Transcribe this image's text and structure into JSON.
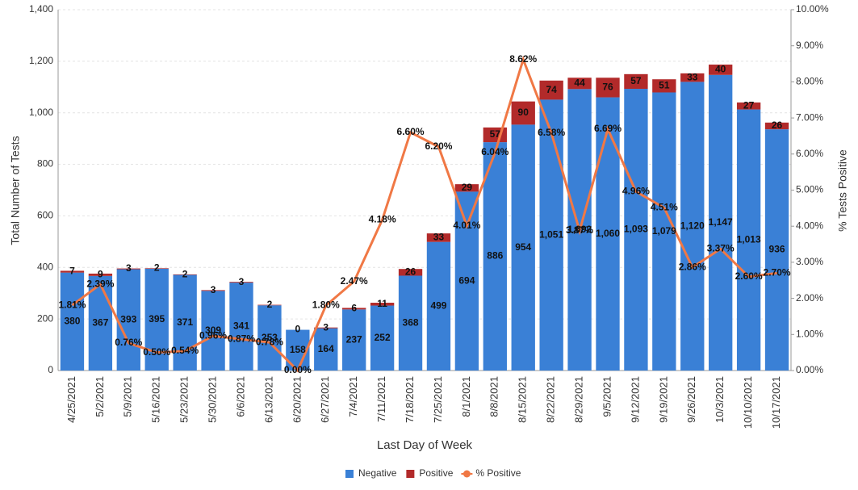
{
  "chart_data": {
    "type": "bar-line",
    "x_label": "Last Day of Week",
    "y_label": "Total Number of Tests",
    "y2_label": "% Tests Positive",
    "categories": [
      "4/25/2021",
      "5/2/2021",
      "5/9/2021",
      "5/16/2021",
      "5/23/2021",
      "5/30/2021",
      "6/6/2021",
      "6/13/2021",
      "6/20/2021",
      "6/27/2021",
      "7/4/2021",
      "7/11/2021",
      "7/18/2021",
      "7/25/2021",
      "8/1/2021",
      "8/8/2021",
      "8/15/2021",
      "8/22/2021",
      "8/29/2021",
      "9/5/2021",
      "9/12/2021",
      "9/19/2021",
      "9/26/2021",
      "10/3/2021",
      "10/10/2021",
      "10/17/2021"
    ],
    "series": [
      {
        "name": "Negative",
        "color": "#3a80d6",
        "kind": "bar",
        "values": [
          380,
          367,
          393,
          395,
          371,
          309,
          341,
          253,
          158,
          164,
          237,
          252,
          368,
          499,
          694,
          886,
          954,
          1051,
          1092,
          1060,
          1093,
          1079,
          1120,
          1147,
          1013,
          936
        ],
        "value_labels": [
          "380",
          "367",
          "393",
          "395",
          "371",
          "309",
          "341",
          "253",
          "158",
          "164",
          "237",
          "252",
          "368",
          "499",
          "694",
          "886",
          "954",
          "1,051",
          "1,092",
          "1,060",
          "1,093",
          "1,079",
          "1,120",
          "1,147",
          "1,013",
          "936"
        ]
      },
      {
        "name": "Positive",
        "color": "#b22a2a",
        "kind": "bar",
        "values": [
          7,
          9,
          3,
          2,
          2,
          3,
          3,
          2,
          0,
          3,
          6,
          11,
          26,
          33,
          29,
          57,
          90,
          74,
          44,
          76,
          57,
          51,
          33,
          40,
          27,
          26
        ]
      },
      {
        "name": "% Positive",
        "color": "#f07845",
        "kind": "line",
        "axis": "y2",
        "values": [
          1.81,
          2.39,
          0.76,
          0.5,
          0.54,
          0.96,
          0.87,
          0.78,
          0.0,
          1.8,
          2.47,
          4.18,
          6.6,
          6.2,
          4.01,
          6.04,
          8.62,
          6.58,
          3.87,
          6.69,
          4.96,
          4.51,
          2.86,
          3.37,
          2.6,
          2.7
        ],
        "value_labels": [
          "1.81%",
          "2.39%",
          "0.76%",
          "0.50%",
          "0.54%",
          "0.96%",
          "0.87%",
          "0.78%",
          "0.00%",
          "1.80%",
          "2.47%",
          "4.18%",
          "6.60%",
          "6.20%",
          "4.01%",
          "6.04%",
          "8.62%",
          "6.58%",
          "3.87%",
          "6.69%",
          "4.96%",
          "4.51%",
          "2.86%",
          "3.37%",
          "2.60%",
          "2.70%"
        ]
      }
    ],
    "ylim": [
      0,
      1400
    ],
    "yticks": [
      0,
      200,
      400,
      600,
      800,
      {
        "value": 1000,
        "label": "1,000"
      },
      {
        "value": 1200,
        "label": "1,200"
      },
      {
        "value": 1400,
        "label": "1,400"
      }
    ],
    "y2lim": [
      0,
      10
    ],
    "y2ticks": [
      {
        "value": 0,
        "label": "0.00%"
      },
      {
        "value": 1,
        "label": "1.00%"
      },
      {
        "value": 2,
        "label": "2.00%"
      },
      {
        "value": 3,
        "label": "3.00%"
      },
      {
        "value": 4,
        "label": "4.00%"
      },
      {
        "value": 5,
        "label": "5.00%"
      },
      {
        "value": 6,
        "label": "6.00%"
      },
      {
        "value": 7,
        "label": "7.00%"
      },
      {
        "value": 8,
        "label": "8.00%"
      },
      {
        "value": 9,
        "label": "9.00%"
      },
      {
        "value": 10,
        "label": "10.00%"
      }
    ],
    "grid": true,
    "legend": "bottom"
  }
}
